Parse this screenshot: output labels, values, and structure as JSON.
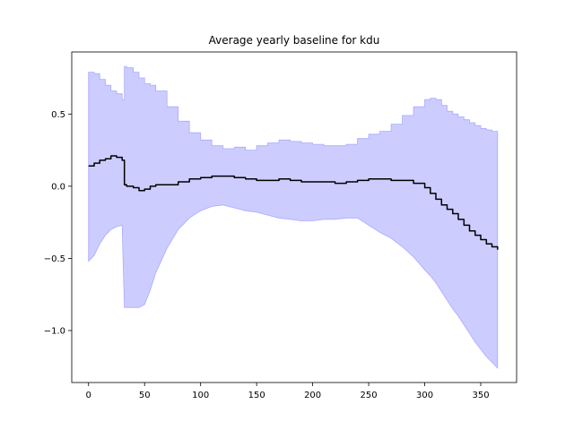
{
  "chart_data": {
    "type": "line",
    "title": "Average yearly baseline for kdu",
    "xlabel": "",
    "ylabel": "",
    "xlim": [
      -15,
      382
    ],
    "ylim": [
      -1.36,
      0.93
    ],
    "xticks": [
      0,
      50,
      100,
      150,
      200,
      250,
      300,
      350
    ],
    "xtick_labels": [
      "0",
      "50",
      "100",
      "150",
      "200",
      "250",
      "300",
      "350"
    ],
    "yticks": [
      0.5,
      0.0,
      -0.5,
      -1.0
    ],
    "ytick_labels": [
      "0.5",
      "0.0",
      "−0.5",
      "−1.0"
    ],
    "grid": false,
    "colors": {
      "mean_line": "#000000",
      "band_fill": "#ccccff",
      "band_edge": "#aaaaff"
    },
    "series": [
      {
        "role": "mean",
        "x": [
          0,
          5,
          10,
          15,
          20,
          25,
          30,
          32,
          34,
          40,
          45,
          50,
          55,
          60,
          70,
          80,
          90,
          100,
          110,
          120,
          130,
          140,
          150,
          160,
          170,
          180,
          190,
          200,
          210,
          220,
          230,
          240,
          250,
          260,
          270,
          280,
          290,
          300,
          305,
          310,
          315,
          320,
          325,
          330,
          335,
          340,
          345,
          350,
          355,
          360,
          365
        ],
        "y": [
          0.14,
          0.16,
          0.18,
          0.19,
          0.21,
          0.2,
          0.18,
          0.01,
          0.0,
          -0.01,
          -0.03,
          -0.02,
          0.0,
          0.01,
          0.01,
          0.03,
          0.05,
          0.06,
          0.07,
          0.07,
          0.06,
          0.05,
          0.04,
          0.04,
          0.05,
          0.04,
          0.03,
          0.03,
          0.03,
          0.02,
          0.03,
          0.04,
          0.05,
          0.05,
          0.04,
          0.04,
          0.02,
          -0.01,
          -0.05,
          -0.09,
          -0.13,
          -0.16,
          -0.19,
          -0.23,
          -0.27,
          -0.31,
          -0.34,
          -0.37,
          -0.4,
          -0.42,
          -0.44
        ]
      },
      {
        "role": "band",
        "x": [
          0,
          5,
          10,
          15,
          20,
          25,
          30,
          32,
          34,
          40,
          45,
          50,
          55,
          60,
          70,
          80,
          90,
          100,
          110,
          120,
          130,
          140,
          150,
          160,
          170,
          180,
          190,
          200,
          210,
          220,
          230,
          240,
          250,
          260,
          270,
          280,
          290,
          300,
          305,
          310,
          315,
          320,
          325,
          330,
          335,
          340,
          345,
          350,
          355,
          360,
          365
        ],
        "upper": [
          0.79,
          0.78,
          0.74,
          0.7,
          0.66,
          0.64,
          0.6,
          0.83,
          0.82,
          0.79,
          0.75,
          0.71,
          0.7,
          0.66,
          0.55,
          0.45,
          0.37,
          0.32,
          0.28,
          0.26,
          0.27,
          0.25,
          0.28,
          0.3,
          0.32,
          0.31,
          0.3,
          0.29,
          0.28,
          0.28,
          0.29,
          0.33,
          0.36,
          0.38,
          0.43,
          0.49,
          0.55,
          0.6,
          0.61,
          0.6,
          0.56,
          0.52,
          0.5,
          0.48,
          0.46,
          0.44,
          0.42,
          0.4,
          0.39,
          0.38,
          0.38
        ],
        "lower": [
          -0.52,
          -0.48,
          -0.4,
          -0.34,
          -0.3,
          -0.28,
          -0.27,
          -0.84,
          -0.84,
          -0.84,
          -0.84,
          -0.82,
          -0.72,
          -0.6,
          -0.43,
          -0.3,
          -0.22,
          -0.17,
          -0.14,
          -0.13,
          -0.15,
          -0.17,
          -0.18,
          -0.2,
          -0.22,
          -0.23,
          -0.24,
          -0.24,
          -0.23,
          -0.23,
          -0.22,
          -0.22,
          -0.27,
          -0.32,
          -0.36,
          -0.42,
          -0.49,
          -0.58,
          -0.62,
          -0.67,
          -0.73,
          -0.79,
          -0.85,
          -0.9,
          -0.96,
          -1.02,
          -1.08,
          -1.13,
          -1.18,
          -1.22,
          -1.26
        ]
      }
    ]
  }
}
